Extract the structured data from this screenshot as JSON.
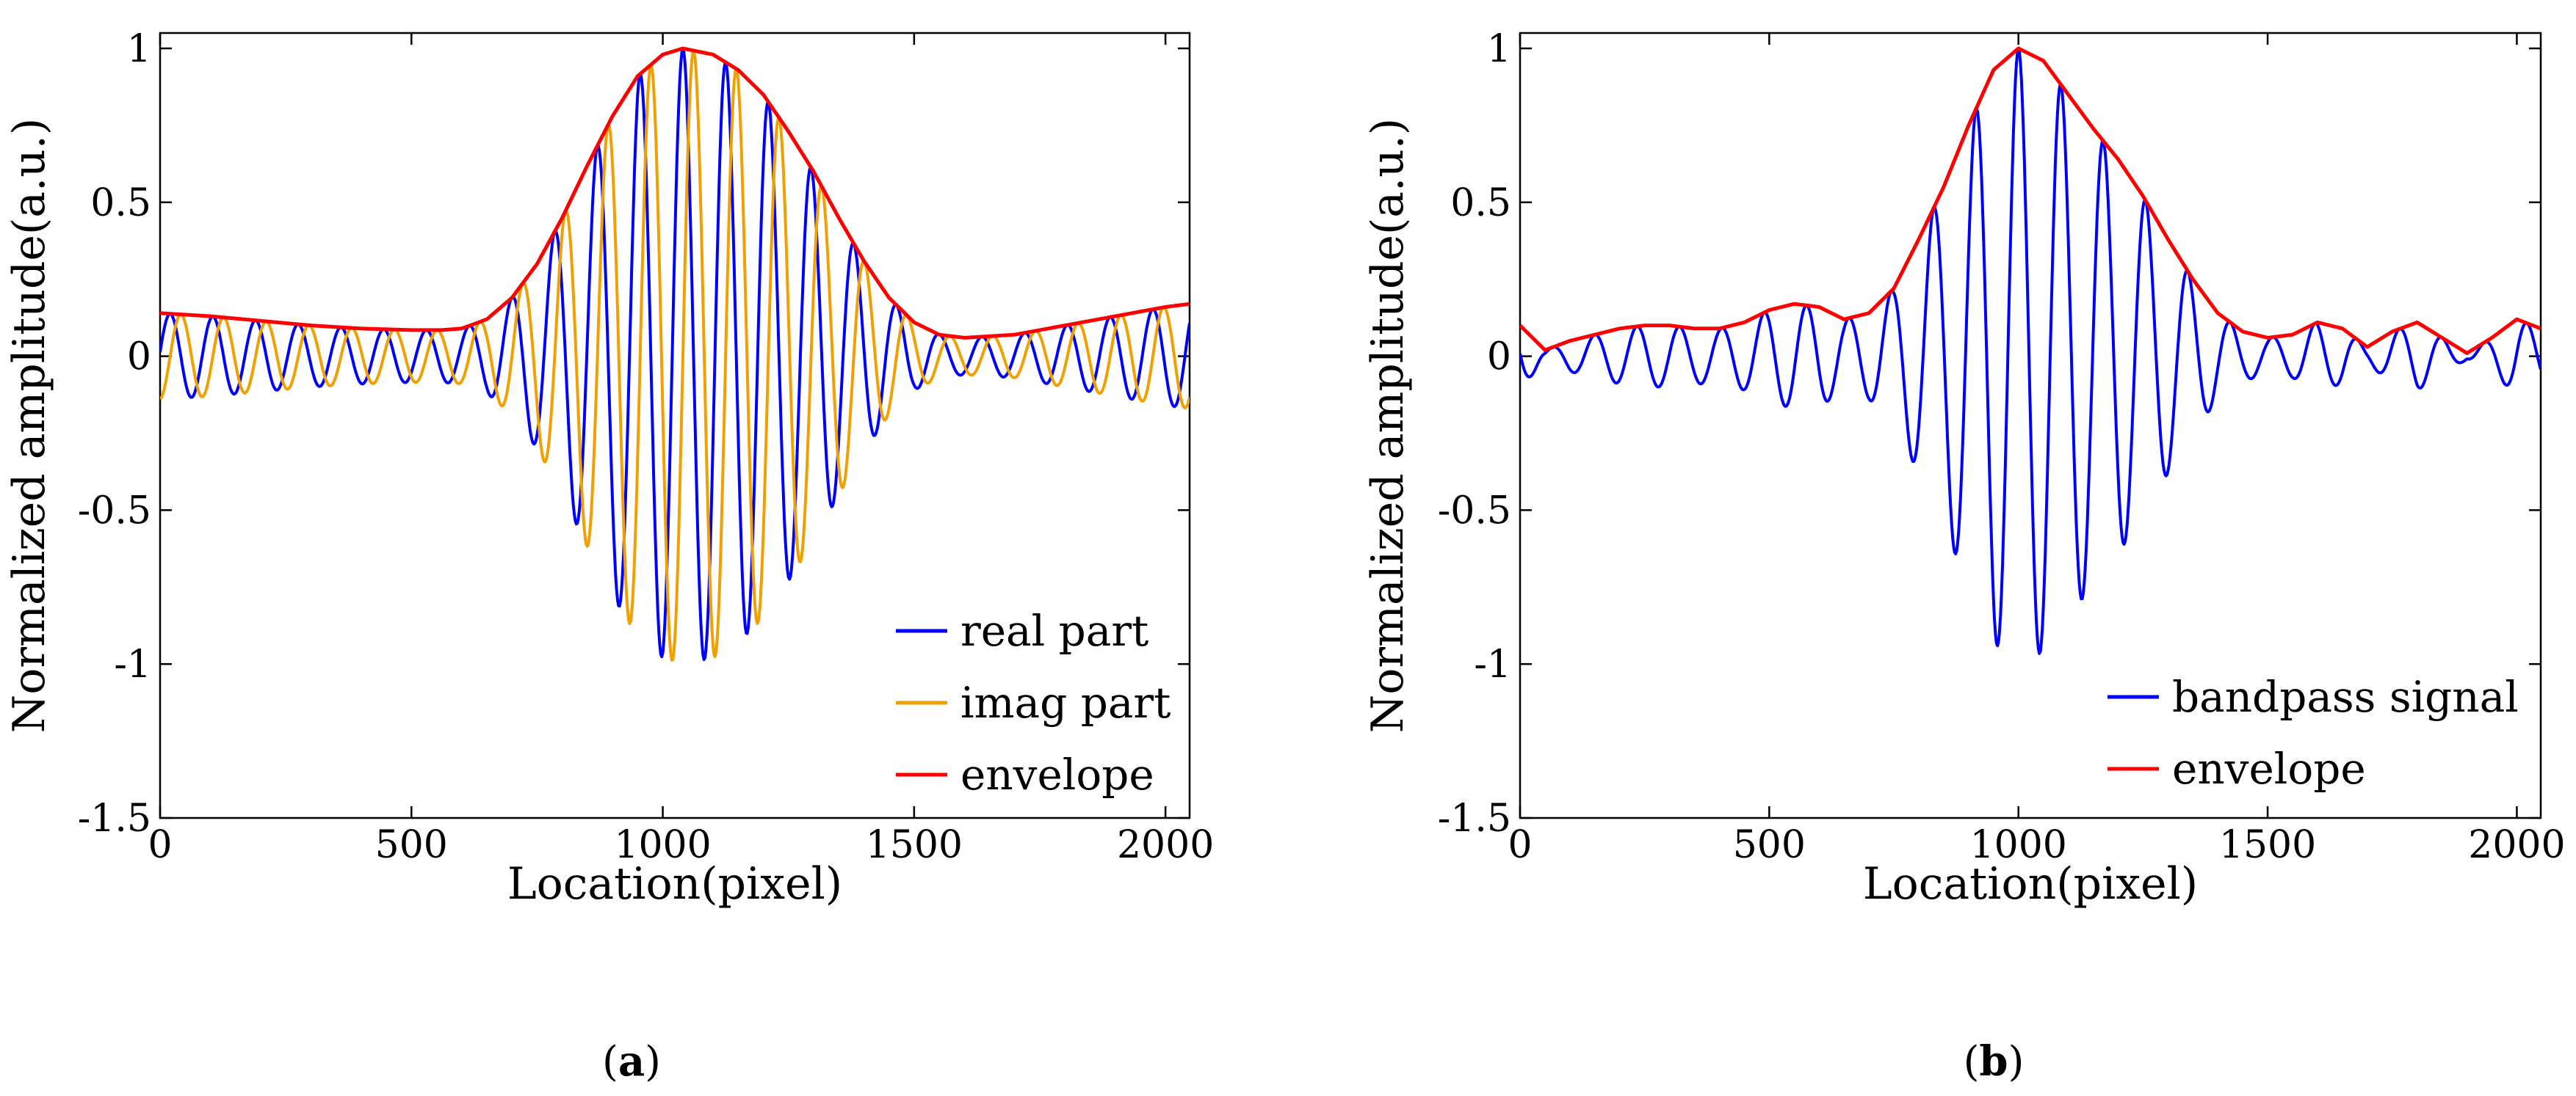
{
  "chart_data": [
    {
      "type": "line",
      "panel_label": "a",
      "xlabel": "Location(pixel)",
      "ylabel": "Normalized amplitude(a.u.)",
      "xlim": [
        0,
        2048
      ],
      "ylim": [
        -1.5,
        1.05
      ],
      "xticks": [
        0,
        500,
        1000,
        1500,
        2000
      ],
      "xtick_labels": [
        "0",
        "500",
        "1000",
        "1500",
        "2000"
      ],
      "yticks": [
        -1.5,
        -1,
        -0.5,
        0,
        0.5,
        1
      ],
      "ytick_labels": [
        "-1.5",
        "-1",
        "-0.5",
        "0",
        "0.5",
        "1"
      ],
      "legend_position": "bottom-right",
      "series": [
        {
          "name": "real part",
          "color": "#0000ff",
          "kind": "carrier",
          "phase": "cos"
        },
        {
          "name": "imag part",
          "color": "#f0a000",
          "kind": "carrier",
          "phase": "sin"
        },
        {
          "name": "envelope",
          "color": "#ff0000",
          "kind": "envelope"
        }
      ],
      "carrier_period": 85,
      "carrier_ref": 1040,
      "envelope_x": [
        0,
        100,
        200,
        300,
        400,
        500,
        560,
        600,
        650,
        700,
        750,
        800,
        850,
        900,
        950,
        1000,
        1040,
        1100,
        1150,
        1200,
        1250,
        1300,
        1350,
        1400,
        1450,
        1500,
        1550,
        1600,
        1700,
        1800,
        1900,
        2000,
        2048
      ],
      "envelope_y": [
        0.14,
        0.13,
        0.115,
        0.1,
        0.09,
        0.085,
        0.085,
        0.09,
        0.12,
        0.19,
        0.3,
        0.45,
        0.62,
        0.78,
        0.91,
        0.98,
        1.0,
        0.98,
        0.93,
        0.85,
        0.73,
        0.6,
        0.45,
        0.31,
        0.19,
        0.11,
        0.07,
        0.06,
        0.07,
        0.1,
        0.13,
        0.16,
        0.17
      ]
    },
    {
      "type": "line",
      "panel_label": "b",
      "xlabel": "Location(pixel)",
      "ylabel": "Normalized amplitude(a.u.)",
      "xlim": [
        0,
        2048
      ],
      "ylim": [
        -1.5,
        1.05
      ],
      "xticks": [
        0,
        500,
        1000,
        1500,
        2000
      ],
      "xtick_labels": [
        "0",
        "500",
        "1000",
        "1500",
        "2000"
      ],
      "yticks": [
        -1.5,
        -1,
        -0.5,
        0,
        0.5,
        1
      ],
      "ytick_labels": [
        "-1.5",
        "-1",
        "-0.5",
        "0",
        "0.5",
        "1"
      ],
      "legend_position": "bottom-right",
      "series": [
        {
          "name": "bandpass signal",
          "color": "#0000ff",
          "kind": "carrier",
          "phase": "cos"
        },
        {
          "name": "envelope",
          "color": "#ff0000",
          "kind": "envelope"
        }
      ],
      "carrier_period": 85,
      "carrier_ref": 1000,
      "envelope_x": [
        0,
        50,
        100,
        150,
        200,
        250,
        300,
        350,
        400,
        450,
        500,
        550,
        600,
        650,
        700,
        750,
        800,
        850,
        900,
        950,
        1000,
        1050,
        1100,
        1150,
        1200,
        1250,
        1300,
        1350,
        1400,
        1450,
        1500,
        1550,
        1600,
        1650,
        1700,
        1750,
        1800,
        1850,
        1900,
        1950,
        2000,
        2048
      ],
      "envelope_y": [
        0.1,
        0.02,
        0.05,
        0.07,
        0.09,
        0.1,
        0.1,
        0.09,
        0.09,
        0.11,
        0.15,
        0.17,
        0.16,
        0.12,
        0.14,
        0.22,
        0.38,
        0.55,
        0.75,
        0.93,
        1.0,
        0.96,
        0.85,
        0.74,
        0.64,
        0.52,
        0.38,
        0.25,
        0.14,
        0.08,
        0.06,
        0.07,
        0.11,
        0.09,
        0.03,
        0.08,
        0.11,
        0.06,
        0.01,
        0.06,
        0.12,
        0.09
      ]
    }
  ],
  "captions": {
    "a": "a",
    "b": "b"
  }
}
